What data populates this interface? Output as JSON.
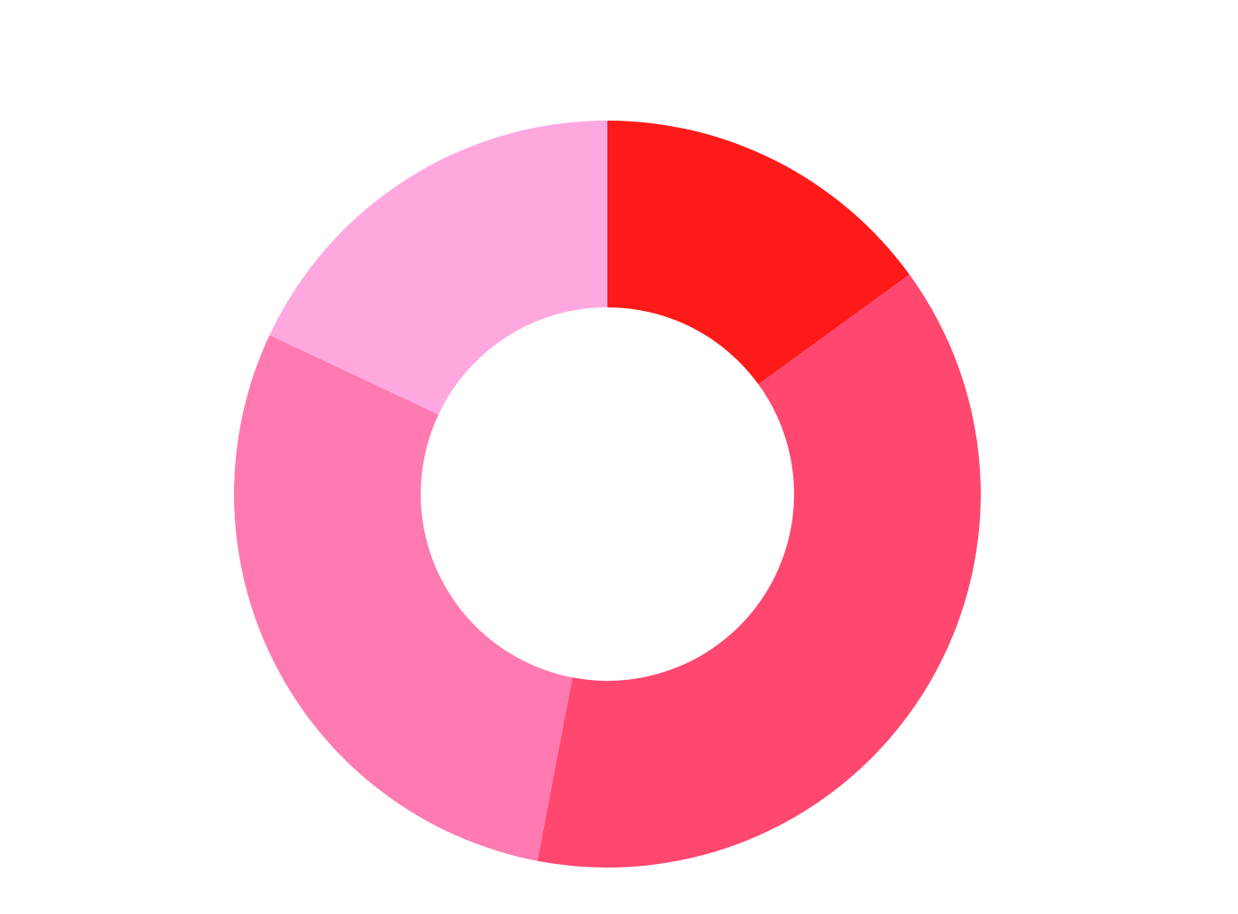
{
  "chart_data": {
    "type": "donut",
    "values": [
      15,
      38,
      29,
      18
    ],
    "colors": [
      "#ff1a1a",
      "#ff476f",
      "#ff7ab0",
      "#ffa8e0"
    ]
  }
}
